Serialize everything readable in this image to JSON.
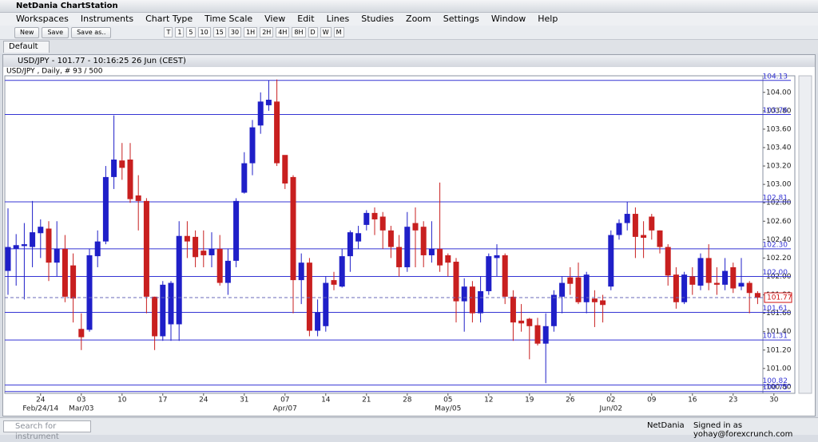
{
  "app_title": "NetDania ChartStation",
  "menu": [
    "Workspaces",
    "Instruments",
    "Chart Type",
    "Time Scale",
    "View",
    "Edit",
    "Lines",
    "Studies",
    "Zoom",
    "Settings",
    "Window",
    "Help"
  ],
  "toolbar": {
    "buttons": [
      "New",
      "Save",
      "Save as.."
    ],
    "periods": [
      "T",
      "1",
      "5",
      "10",
      "15",
      "30",
      "1H",
      "2H",
      "4H",
      "8H",
      "D",
      "W",
      "M"
    ]
  },
  "tab": "Default",
  "window_title": "USD/JPY - 101.77 - 10:16:25 26 Jun (CEST)",
  "status": {
    "search_placeholder": "Search for instrument",
    "provider": "NetDania",
    "signed_in": "Signed in as yohay@forexcrunch.com"
  },
  "chart_data": {
    "type": "candlestick",
    "title": "USD/JPY , Daily, # 93 / 500",
    "categories": [
      null,
      null,
      null,
      null,
      "24",
      null,
      null,
      null,
      null,
      "03",
      null,
      null,
      null,
      null,
      "10",
      null,
      null,
      null,
      null,
      "17",
      null,
      null,
      null,
      null,
      "24",
      null,
      null,
      null,
      null,
      "31",
      null,
      null,
      null,
      null,
      "07",
      null,
      null,
      null,
      null,
      "14",
      null,
      null,
      null,
      null,
      "21",
      null,
      null,
      null,
      null,
      "28",
      null,
      null,
      null,
      null,
      "05",
      null,
      null,
      null,
      null,
      "12",
      null,
      null,
      null,
      null,
      "19",
      null,
      null,
      null,
      null,
      "26",
      null,
      null,
      null,
      null,
      "02",
      null,
      null,
      null,
      null,
      "09",
      null,
      null,
      null,
      null,
      "16",
      null,
      null,
      null,
      null,
      "23",
      null,
      null,
      null,
      null,
      "30"
    ],
    "categories2": [
      null,
      null,
      null,
      null,
      "Feb/24/14",
      null,
      null,
      null,
      null,
      "Mar/03",
      null,
      null,
      null,
      null,
      null,
      null,
      null,
      null,
      null,
      null,
      null,
      null,
      null,
      null,
      null,
      null,
      null,
      null,
      null,
      null,
      null,
      null,
      null,
      null,
      "Apr/07",
      null,
      null,
      null,
      null,
      null,
      null,
      null,
      null,
      null,
      null,
      null,
      null,
      null,
      null,
      null,
      null,
      null,
      null,
      null,
      "May/05",
      null,
      null,
      null,
      null,
      null,
      null,
      null,
      null,
      null,
      null,
      null,
      null,
      null,
      null,
      null,
      null,
      null,
      null,
      null,
      "Jun/02",
      null,
      null,
      null,
      null,
      null,
      null,
      null,
      null,
      null,
      null,
      null,
      null,
      null,
      null,
      null,
      null,
      null,
      null,
      null,
      null
    ],
    "open": [
      102.06,
      102.3,
      102.33,
      102.32,
      102.47,
      102.52,
      102.15,
      102.3,
      102.12,
      101.43,
      101.42,
      102.22,
      102.38,
      103.08,
      103.26,
      103.27,
      102.88,
      102.82,
      101.78,
      101.35,
      101.48,
      101.48,
      102.44,
      102.43,
      102.28,
      102.23,
      102.3,
      101.93,
      102.17,
      102.91,
      103.23,
      103.64,
      103.86,
      103.9,
      103.32,
      103.08,
      101.96,
      102.15,
      101.41,
      101.46,
      101.96,
      101.89,
      102.22,
      102.38,
      102.56,
      102.69,
      102.65,
      102.5,
      102.32,
      102.1,
      102.58,
      102.54,
      102.23,
      102.3,
      102.23,
      102.16,
      101.73,
      101.89,
      101.6,
      101.84,
      102.2,
      102.23,
      101.78,
      101.52,
      101.54,
      101.47,
      101.27,
      101.46,
      101.78,
      101.99,
      101.99,
      101.72,
      101.76,
      101.74,
      101.89,
      102.45,
      102.58,
      102.68,
      102.45,
      102.65,
      102.5,
      102.32,
      102.02,
      101.72,
      102.0,
      101.9,
      102.2,
      101.93,
      101.91,
      102.1,
      101.89,
      101.93,
      101.82,
      null,
      null
    ],
    "high": [
      102.74,
      102.46,
      102.58,
      102.82,
      102.62,
      102.6,
      102.6,
      102.45,
      102.25,
      101.6,
      102.3,
      102.5,
      103.2,
      103.75,
      103.45,
      103.45,
      103.1,
      102.85,
      101.78,
      101.95,
      101.95,
      102.6,
      102.6,
      102.5,
      102.5,
      102.48,
      102.45,
      102.3,
      102.85,
      103.35,
      103.7,
      104.0,
      104.13,
      104.14,
      103.3,
      103.1,
      102.25,
      102.2,
      101.75,
      102.0,
      102.05,
      102.3,
      102.5,
      102.55,
      102.72,
      102.75,
      102.7,
      102.55,
      102.45,
      102.7,
      102.75,
      102.6,
      102.6,
      103.02,
      102.25,
      102.2,
      101.98,
      101.95,
      102.0,
      102.25,
      102.35,
      102.25,
      101.85,
      101.7,
      101.55,
      101.55,
      101.6,
      101.85,
      102.0,
      102.1,
      102.15,
      102.05,
      101.85,
      101.8,
      102.5,
      102.62,
      102.81,
      102.75,
      102.6,
      102.68,
      102.5,
      102.35,
      102.1,
      102.05,
      102.1,
      102.25,
      102.35,
      102.1,
      102.2,
      102.15,
      102.2,
      101.95,
      101.84,
      null,
      null
    ],
    "low": [
      101.8,
      101.9,
      101.75,
      102.1,
      102.2,
      101.95,
      102.0,
      101.72,
      101.5,
      101.2,
      101.4,
      102.1,
      102.35,
      102.95,
      103.05,
      102.8,
      102.5,
      101.6,
      101.2,
      101.3,
      101.3,
      101.3,
      102.2,
      102.1,
      102.1,
      102.1,
      101.9,
      101.8,
      102.1,
      102.9,
      103.1,
      103.55,
      103.8,
      103.2,
      102.95,
      101.6,
      101.7,
      101.35,
      101.35,
      101.4,
      101.85,
      101.88,
      102.05,
      102.3,
      102.5,
      102.45,
      102.3,
      102.2,
      102.0,
      102.05,
      102.1,
      102.1,
      102.15,
      102.05,
      102.0,
      101.5,
      101.4,
      101.5,
      101.5,
      101.8,
      102.0,
      101.7,
      101.3,
      101.4,
      101.1,
      101.25,
      100.84,
      101.4,
      101.6,
      101.8,
      101.7,
      101.6,
      101.45,
      101.5,
      101.85,
      102.4,
      102.5,
      102.2,
      102.2,
      102.4,
      102.25,
      101.9,
      101.65,
      101.7,
      101.8,
      101.85,
      101.85,
      101.8,
      101.85,
      101.82,
      101.85,
      101.6,
      101.7,
      null,
      null
    ],
    "close": [
      102.32,
      102.34,
      102.35,
      102.48,
      102.54,
      102.15,
      102.3,
      101.78,
      101.76,
      101.34,
      102.23,
      102.38,
      103.08,
      103.27,
      103.18,
      102.84,
      102.82,
      101.78,
      101.35,
      101.91,
      101.93,
      102.44,
      102.38,
      102.21,
      102.23,
      102.3,
      101.93,
      102.17,
      102.82,
      103.23,
      103.62,
      103.9,
      103.92,
      103.23,
      103.01,
      101.96,
      102.15,
      101.41,
      101.61,
      101.93,
      101.91,
      102.22,
      102.48,
      102.47,
      102.69,
      102.62,
      102.5,
      102.32,
      102.1,
      102.54,
      102.5,
      102.23,
      102.3,
      102.12,
      102.15,
      101.73,
      101.89,
      101.6,
      101.84,
      102.22,
      102.23,
      101.78,
      101.5,
      101.49,
      101.46,
      101.27,
      101.46,
      101.8,
      101.93,
      101.92,
      101.72,
      102.02,
      101.72,
      101.69,
      102.45,
      102.58,
      102.68,
      102.43,
      102.42,
      102.5,
      102.32,
      102.01,
      101.72,
      102.02,
      101.91,
      102.2,
      101.93,
      101.91,
      102.06,
      101.87,
      101.93,
      101.82,
      101.77,
      null,
      null
    ],
    "up_color": "#1f1fc8",
    "down_color": "#c81f1f",
    "ylim": [
      100.73,
      104.18
    ],
    "yticks": [
      {
        "value": 100.8,
        "label": "100.80"
      },
      {
        "value": 101,
        "label": "101.00"
      },
      {
        "value": 101.2,
        "label": "101.20"
      },
      {
        "value": 101.4,
        "label": "101.40"
      },
      {
        "value": 101.6,
        "label": "101.60"
      },
      {
        "value": 101.8,
        "label": "101.80"
      },
      {
        "value": 102,
        "label": "102.00"
      },
      {
        "value": 102.2,
        "label": "102.20"
      },
      {
        "value": 102.4,
        "label": "102.40"
      },
      {
        "value": 102.6,
        "label": "102.60"
      },
      {
        "value": 102.8,
        "label": "102.80"
      },
      {
        "value": 103,
        "label": "103.00"
      },
      {
        "value": 103.2,
        "label": "103.20"
      },
      {
        "value": 103.4,
        "label": "103.40"
      },
      {
        "value": 103.6,
        "label": "103.60"
      },
      {
        "value": 103.8,
        "label": "103.80"
      },
      {
        "value": 104,
        "label": "104.00"
      }
    ],
    "levels": [
      104.13,
      103.76,
      102.81,
      {
        "value": 102.3,
        "label": "102.30"
      },
      {
        "value": 102,
        "label": "102.00"
      },
      101.61,
      101.31,
      100.82,
      100.75
    ],
    "level_color": "#3434d4",
    "last": 101.77,
    "last_color": "#d01010"
  }
}
